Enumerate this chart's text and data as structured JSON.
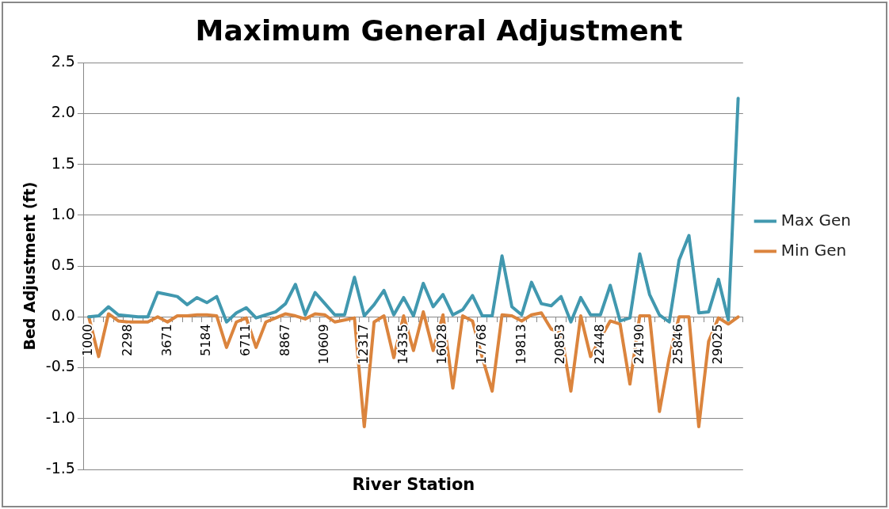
{
  "chart_data": {
    "type": "line",
    "title": "Maximum General Adjustment",
    "xlabel": "River Station",
    "ylabel": "Bed Adjustment (ft)",
    "categories": [
      "1000",
      null,
      null,
      null,
      "2298",
      null,
      null,
      null,
      "3671",
      null,
      null,
      null,
      "5184",
      null,
      null,
      null,
      "6711",
      null,
      null,
      null,
      "8867",
      null,
      null,
      null,
      "10609",
      null,
      null,
      null,
      "12317",
      null,
      null,
      null,
      "14335",
      null,
      null,
      null,
      "16028",
      null,
      null,
      null,
      "17768",
      null,
      null,
      null,
      "19813",
      null,
      null,
      null,
      "20853",
      null,
      null,
      null,
      "22448",
      null,
      null,
      null,
      "24190",
      null,
      null,
      null,
      "25846",
      null,
      null,
      null,
      "29025",
      null,
      null
    ],
    "series": [
      {
        "name": "Max Gen",
        "color": "#4198af",
        "values": [
          0,
          0.01,
          0.1,
          0.02,
          0.01,
          0,
          0,
          0.24,
          0.22,
          0.2,
          0.12,
          0.19,
          0.14,
          0.2,
          -0.05,
          0.04,
          0.09,
          -0.01,
          0.02,
          0.05,
          0.13,
          0.32,
          0.02,
          0.24,
          0.13,
          0.02,
          0.02,
          0.39,
          0.01,
          0.12,
          0.26,
          0.02,
          0.19,
          0.01,
          0.33,
          0.1,
          0.22,
          0.02,
          0.07,
          0.21,
          0.01,
          0.01,
          0.6,
          0.1,
          0.02,
          0.34,
          0.13,
          0.11,
          0.2,
          -0.05,
          0.19,
          0.02,
          0.02,
          0.31,
          -0.04,
          -0.01,
          0.62,
          0.22,
          0.02,
          -0.05,
          0.56,
          0.8,
          0.04,
          0.05,
          0.37,
          -0.03,
          2.15
        ]
      },
      {
        "name": "Min Gen",
        "color": "#db843d",
        "values": [
          0,
          -0.39,
          0.03,
          -0.04,
          -0.05,
          -0.05,
          -0.05,
          0,
          -0.05,
          0.01,
          0.01,
          0.02,
          0.02,
          0.01,
          -0.3,
          -0.05,
          -0.01,
          -0.3,
          -0.05,
          -0.01,
          0.03,
          0.01,
          -0.02,
          0.03,
          0.02,
          -0.05,
          -0.03,
          -0.01,
          -1.08,
          -0.05,
          0.01,
          -0.4,
          0.01,
          -0.33,
          0.05,
          -0.33,
          0.02,
          -0.7,
          0.01,
          -0.04,
          -0.4,
          -0.73,
          0.02,
          0.01,
          -0.04,
          0.02,
          0.04,
          -0.12,
          -0.15,
          -0.73,
          0.01,
          -0.39,
          -0.21,
          -0.04,
          -0.07,
          -0.66,
          0.01,
          0.01,
          -0.93,
          -0.4,
          0,
          0,
          -1.08,
          -0.24,
          -0.01,
          -0.07,
          0
        ]
      }
    ],
    "ylim": [
      -1.5,
      2.5
    ],
    "yticks": [
      2.5,
      {
        "value": 2,
        "label": "2.0"
      },
      1.5,
      {
        "value": 1,
        "label": "1.0"
      },
      0.5,
      {
        "value": 0,
        "label": "0.0"
      },
      -0.5,
      {
        "value": -1,
        "label": "-1.0"
      },
      -1.5
    ],
    "grid": "y",
    "legend": "right",
    "marker": "none",
    "line_style": "solid"
  }
}
